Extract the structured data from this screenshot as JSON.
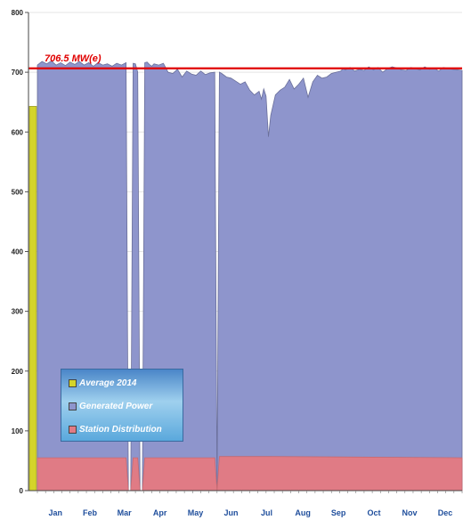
{
  "chart_data": {
    "type": "area",
    "ylim": [
      0,
      800
    ],
    "y_ticks": [
      "0",
      "100",
      "200",
      "300",
      "400",
      "500",
      "600",
      "700",
      "800"
    ],
    "months": [
      "Jan",
      "Feb",
      "Mar",
      "Apr",
      "May",
      "Jun",
      "Jul",
      "Aug",
      "Sep",
      "Oct",
      "Nov",
      "Dec"
    ],
    "reference_line": {
      "value": 706.5,
      "label": "706.5 MW(e)",
      "color": "#e00000"
    },
    "average_2014": {
      "name": "Average 2014",
      "value": 643,
      "color": "#d4d42a"
    },
    "series": [
      {
        "name": "Generated Power",
        "color": "#8e95cc",
        "x": [
          0,
          4,
          8,
          12,
          16,
          20,
          24,
          28,
          32,
          36,
          40,
          44,
          48,
          52,
          56,
          60,
          64,
          68,
          72,
          76,
          78,
          80,
          82,
          84,
          86,
          88,
          90,
          92,
          94,
          96,
          98,
          100,
          104,
          108,
          112,
          116,
          120,
          124,
          128,
          132,
          136,
          140,
          144,
          148,
          152,
          154,
          156,
          158,
          160,
          162,
          166,
          170,
          174,
          178,
          182,
          186,
          190,
          192,
          194,
          196,
          198,
          200,
          204,
          208,
          212,
          216,
          220,
          224,
          228,
          232,
          236,
          240,
          244,
          248,
          252,
          256,
          260,
          262,
          264,
          268,
          272,
          276,
          280,
          284,
          288,
          292,
          296,
          300,
          304,
          308,
          312,
          316,
          320,
          324,
          328,
          332,
          336,
          340,
          344,
          348,
          352,
          356,
          360,
          364
        ],
        "values": [
          712,
          718,
          714,
          719,
          712,
          716,
          711,
          717,
          713,
          718,
          712,
          716,
          710,
          716,
          712,
          714,
          710,
          715,
          712,
          716,
          0,
          0,
          715,
          714,
          700,
          0,
          0,
          716,
          717,
          713,
          710,
          714,
          712,
          715,
          700,
          698,
          705,
          692,
          702,
          697,
          695,
          702,
          696,
          699,
          700,
          0,
          700,
          698,
          695,
          692,
          690,
          685,
          680,
          684,
          670,
          662,
          668,
          655,
          672,
          660,
          592,
          628,
          662,
          670,
          675,
          688,
          672,
          680,
          690,
          658,
          684,
          695,
          690,
          692,
          698,
          700,
          702,
          706,
          704,
          708,
          702,
          705,
          703,
          709,
          704,
          708,
          700,
          706,
          709,
          707,
          704,
          703,
          708,
          706,
          704,
          709,
          705,
          707,
          702,
          708,
          706,
          705,
          704,
          703
        ]
      },
      {
        "name": "Station  Distribution",
        "color": "#e07b85",
        "x": [
          0,
          76,
          78,
          80,
          82,
          86,
          88,
          90,
          92,
          152,
          154,
          156,
          200,
          364
        ],
        "values": [
          55,
          55,
          0,
          0,
          55,
          55,
          0,
          0,
          55,
          55,
          0,
          57,
          57,
          55
        ]
      }
    ]
  },
  "legend": {
    "items": [
      {
        "label": "Average 2014",
        "color": "#d4d42a"
      },
      {
        "label": "Generated Power",
        "color": "#8e95cc"
      },
      {
        "label": "Station  Distribution",
        "color": "#e07b85"
      }
    ]
  }
}
